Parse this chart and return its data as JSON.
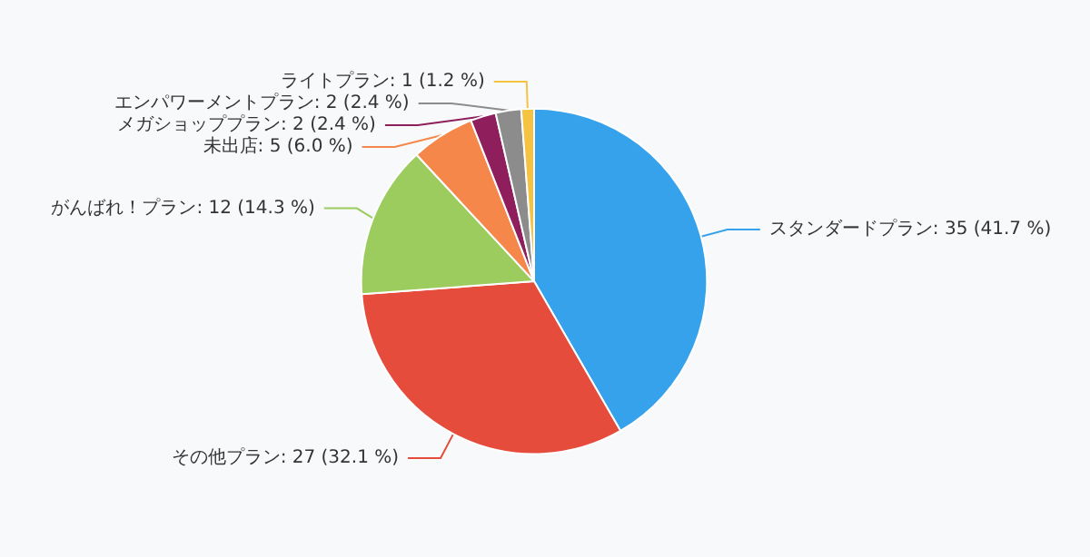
{
  "chart_data": {
    "type": "pie",
    "categories": [
      "スタンダードプラン",
      "その他プラン",
      "がんばれ！プラン",
      "未出店",
      "メガショッププラン",
      "エンパワーメントプラン",
      "ライトプラン"
    ],
    "values": [
      35,
      27,
      12,
      5,
      2,
      2,
      1
    ],
    "value_labels": [
      "35 (41.7 %)",
      "27 (32.1 %)",
      "12 (14.3 %)",
      "5 (6.0 %)",
      "2 (2.4 %)",
      "2 (2.4 %)",
      "1 (1.2 %)"
    ],
    "colors": [
      "#36a2eb",
      "#e64c3c",
      "#9ccc5e",
      "#f5874a",
      "#8e1f5c",
      "#8c8c8c",
      "#f5c242"
    ],
    "legend": false
  }
}
